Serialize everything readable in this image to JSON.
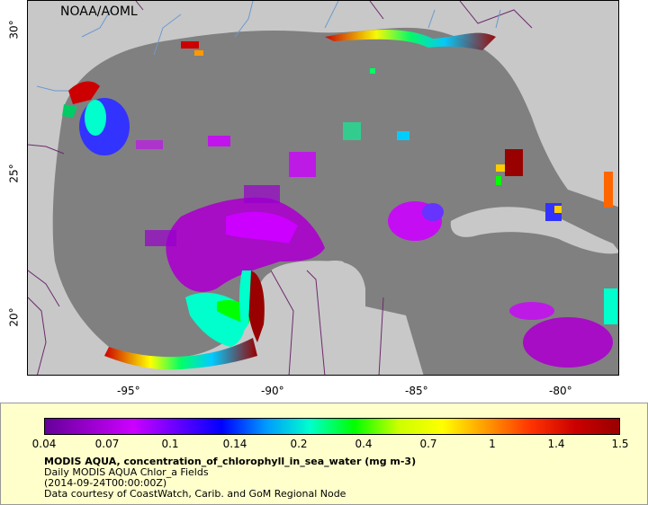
{
  "map": {
    "attribution": "NOAA/AOML",
    "lon_ticks": [
      "-95°",
      "-90°",
      "-85°",
      "-80°"
    ],
    "lat_ticks": [
      "30°",
      "25°",
      "20°"
    ],
    "colors": {
      "land": "#c8c8c8",
      "cloud_or_nodata": "#808080",
      "border": "#6b2b6b",
      "river": "#6a9ad0"
    }
  },
  "legend": {
    "colorbar_stops": [
      "#660099",
      "#9900cc",
      "#cc00ff",
      "#6600ff",
      "#0000ff",
      "#0099ff",
      "#00ffcc",
      "#00ff00",
      "#ccff00",
      "#ffff00",
      "#ff9900",
      "#ff3300",
      "#cc0000",
      "#990000"
    ],
    "tick_labels": [
      "0.04",
      "0.07",
      "0.1",
      "0.14",
      "0.2",
      "0.4",
      "0.7",
      "1",
      "1.4",
      "1.5"
    ],
    "title": "MODIS AQUA, concentration_of_chlorophyll_in_sea_water (mg m-3)",
    "subtitle": "Daily MODIS AQUA Chlor_a Fields",
    "timestamp": "(2014-09-24T00:00:00Z)",
    "credit": "Data courtesy of CoastWatch, Carib. and GoM Regional Node"
  }
}
